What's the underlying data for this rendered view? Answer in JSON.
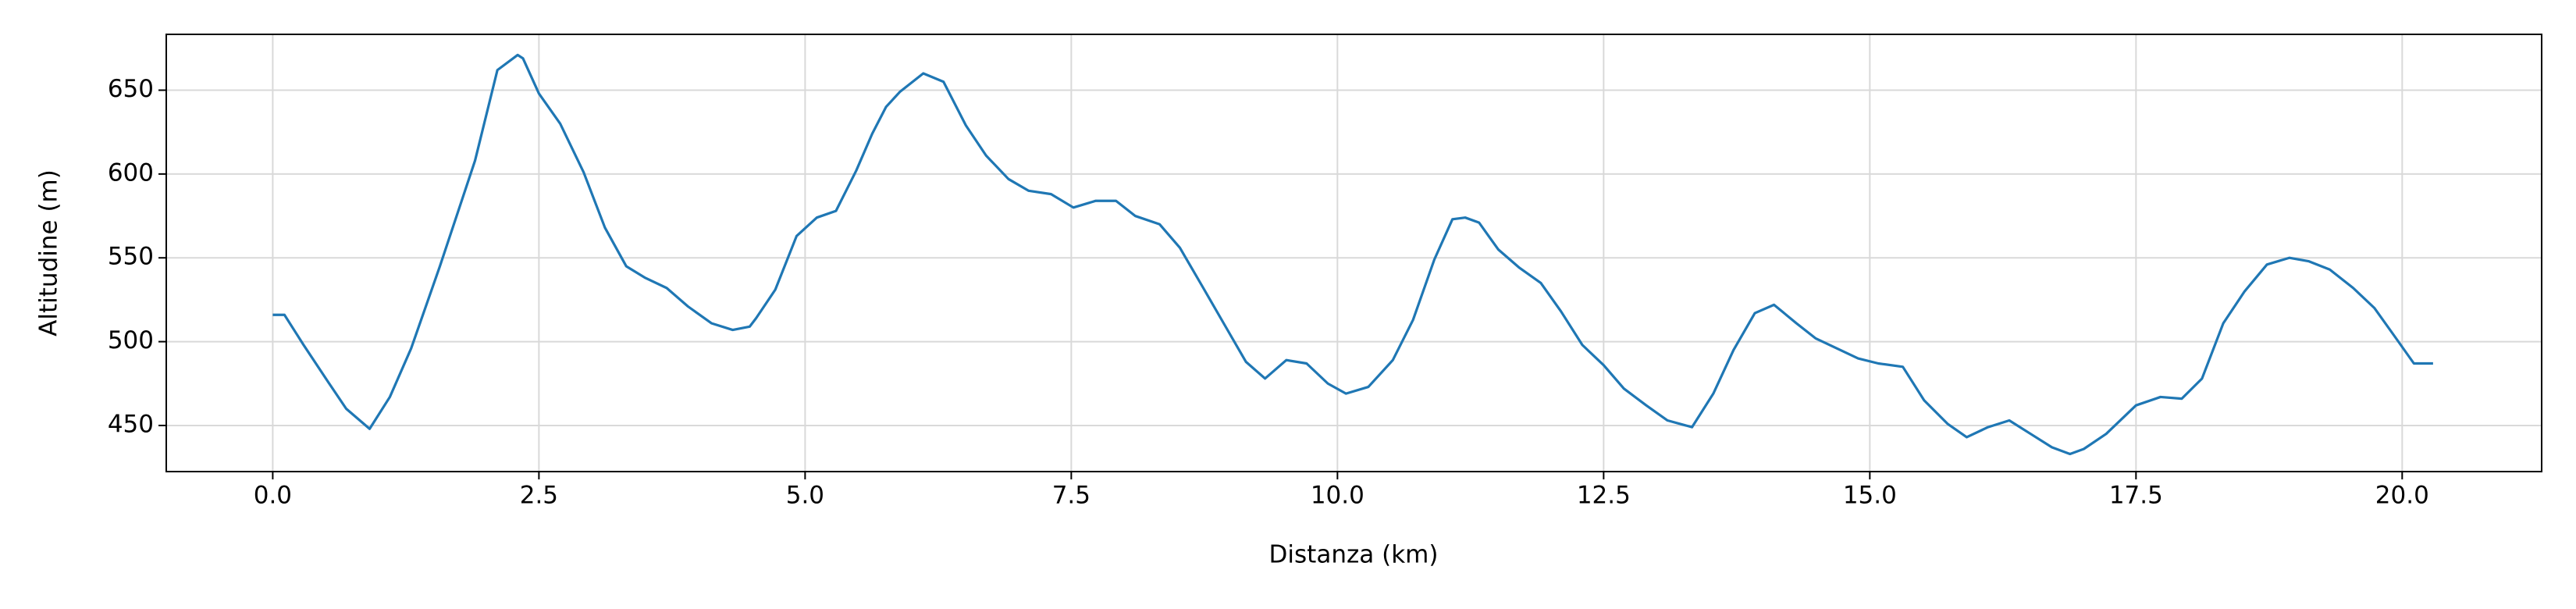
{
  "chart_data": {
    "type": "line",
    "xlabel": "Distanza (km)",
    "ylabel": "Altitudine (m)",
    "x": [
      0,
      0.11,
      0.29,
      0.52,
      0.69,
      0.91,
      1.1,
      1.3,
      1.57,
      1.9,
      2.11,
      2.3,
      2.35,
      2.5,
      2.7,
      2.92,
      3.12,
      3.32,
      3.5,
      3.7,
      3.9,
      4.12,
      4.32,
      4.48,
      4.54,
      4.72,
      4.92,
      5.11,
      5.29,
      5.48,
      5.63,
      5.76,
      5.89,
      6.11,
      6.3,
      6.51,
      6.7,
      6.91,
      7.1,
      7.31,
      7.52,
      7.73,
      7.92,
      8.1,
      8.33,
      8.52,
      8.74,
      8.94,
      9.14,
      9.32,
      9.52,
      9.71,
      9.91,
      10.08,
      10.29,
      10.52,
      10.71,
      10.91,
      11.08,
      11.2,
      11.33,
      11.51,
      11.71,
      11.91,
      12.1,
      12.3,
      12.5,
      12.69,
      12.9,
      13.1,
      13.33,
      13.53,
      13.72,
      13.92,
      14.1,
      14.31,
      14.49,
      14.69,
      14.89,
      15.08,
      15.31,
      15.51,
      15.73,
      15.91,
      16.11,
      16.31,
      16.51,
      16.71,
      16.88,
      17.01,
      17.22,
      17.5,
      17.73,
      17.93,
      18.12,
      18.32,
      18.52,
      18.73,
      18.94,
      19.12,
      19.32,
      19.54,
      19.74,
      19.92,
      20.11,
      20.29
    ],
    "values": [
      516,
      516,
      498,
      476,
      460,
      448,
      467,
      496,
      545,
      608,
      662,
      671,
      669,
      648,
      630,
      601,
      568,
      545,
      538,
      532,
      521,
      511,
      507,
      509,
      514,
      531,
      563,
      574,
      578,
      602,
      624,
      640,
      649,
      660,
      655,
      629,
      611,
      597,
      590,
      588,
      580,
      584,
      584,
      575,
      570,
      556,
      532,
      510,
      488,
      478,
      489,
      487,
      475,
      469,
      473,
      489,
      513,
      549,
      573,
      574,
      571,
      555,
      544,
      535,
      518,
      498,
      486,
      472,
      462,
      453,
      449,
      469,
      495,
      517,
      522,
      511,
      502,
      496,
      490,
      487,
      485,
      465,
      451,
      443,
      449,
      453,
      445,
      437,
      433,
      436,
      445,
      462,
      467,
      466,
      478,
      511,
      530,
      546,
      550,
      548,
      543,
      532,
      520,
      504,
      487,
      487
    ],
    "color": "#1f77b4",
    "xlim": [
      -1.0,
      21.31
    ],
    "ylim": [
      422.5,
      683.3
    ],
    "xticks": [
      {
        "value": 0,
        "label": "0.0"
      },
      2.5,
      {
        "value": 5,
        "label": "5.0"
      },
      7.5,
      {
        "value": 10,
        "label": "10.0"
      },
      12.5,
      {
        "value": 15,
        "label": "15.0"
      },
      17.5,
      {
        "value": 20,
        "label": "20.0"
      }
    ],
    "yticks": [
      450,
      500,
      550,
      600,
      650
    ],
    "grid": true
  }
}
